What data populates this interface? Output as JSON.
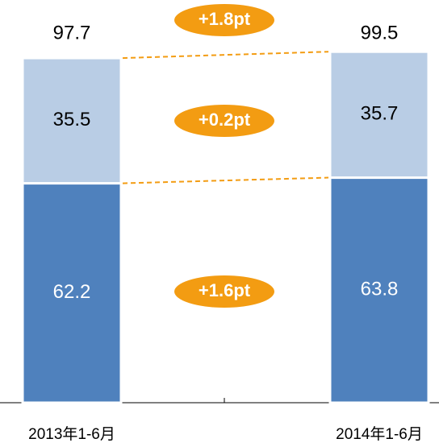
{
  "chart_data": {
    "type": "stacked-bar",
    "categories": [
      "2013年1-6月",
      "2014年1-6月"
    ],
    "series": [
      {
        "name": null,
        "color": "#4f81bd",
        "label_color": "#ffffff",
        "values": [
          62.2,
          63.8
        ]
      },
      {
        "name": null,
        "color": "#b9cde5",
        "label_color": "#000000",
        "values": [
          35.5,
          35.7
        ]
      }
    ],
    "totals": [
      97.7,
      99.5
    ],
    "annotations": [
      "+1.8pt",
      "+0.2pt",
      "+1.6pt"
    ],
    "annotation_color": "#f39c12",
    "ylim": [
      0,
      100
    ]
  }
}
